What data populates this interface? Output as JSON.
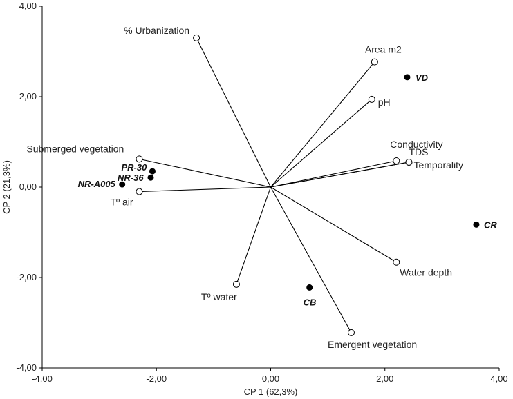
{
  "chart_data": {
    "type": "scatter",
    "subtype": "pca-biplot",
    "xlabel": "CP 1 (62,3%)",
    "ylabel": "CP 2 (21,3%)",
    "xlim": [
      -4,
      4
    ],
    "ylim": [
      -4,
      4
    ],
    "xticks": [
      -4,
      -2,
      0,
      2,
      4
    ],
    "yticks": [
      -4,
      -2,
      0,
      2,
      4
    ],
    "x_tick_labels": [
      "-4,00",
      "-2,00",
      "0,00",
      "2,00",
      "4,00"
    ],
    "y_tick_labels": [
      "-4,00",
      "-2,00",
      "0,00",
      "2,00",
      "4,00"
    ],
    "grid": false,
    "origin": [
      0,
      0
    ],
    "vectors": [
      {
        "label": "% Urbanization",
        "x": -1.3,
        "y": 3.3
      },
      {
        "label": "Area m2",
        "x": 1.82,
        "y": 2.77
      },
      {
        "label": "pH",
        "x": 1.77,
        "y": 1.94
      },
      {
        "label": "Conductivity",
        "x": 2.2,
        "y": 0.58
      },
      {
        "label": "TDS",
        "x": 2.42,
        "y": 0.55
      },
      {
        "label": "Temporality",
        "x": 2.42,
        "y": 0.55
      },
      {
        "label": "Water depth",
        "x": 2.2,
        "y": -1.66
      },
      {
        "label": "Emergent vegetation",
        "x": 1.41,
        "y": -3.22
      },
      {
        "label": "Tº water",
        "x": -0.6,
        "y": -2.15
      },
      {
        "label": "Submerged vegetation",
        "x": -2.3,
        "y": 0.62
      },
      {
        "label": "Tº air",
        "x": -2.3,
        "y": -0.1
      }
    ],
    "sites": [
      {
        "label": "VD",
        "x": 2.39,
        "y": 2.43
      },
      {
        "label": "CR",
        "x": 3.6,
        "y": -0.83
      },
      {
        "label": "CB",
        "x": 0.68,
        "y": -2.22
      },
      {
        "label": "PR-30",
        "x": -2.07,
        "y": 0.35
      },
      {
        "label": "NR-36",
        "x": -2.1,
        "y": 0.21
      },
      {
        "label": "NR-A005",
        "x": -2.6,
        "y": 0.06
      }
    ],
    "colors": {
      "axis": "#000000",
      "vector": "#000000",
      "vector_marker_fill": "#ffffff",
      "site_marker_fill": "#000000"
    }
  }
}
